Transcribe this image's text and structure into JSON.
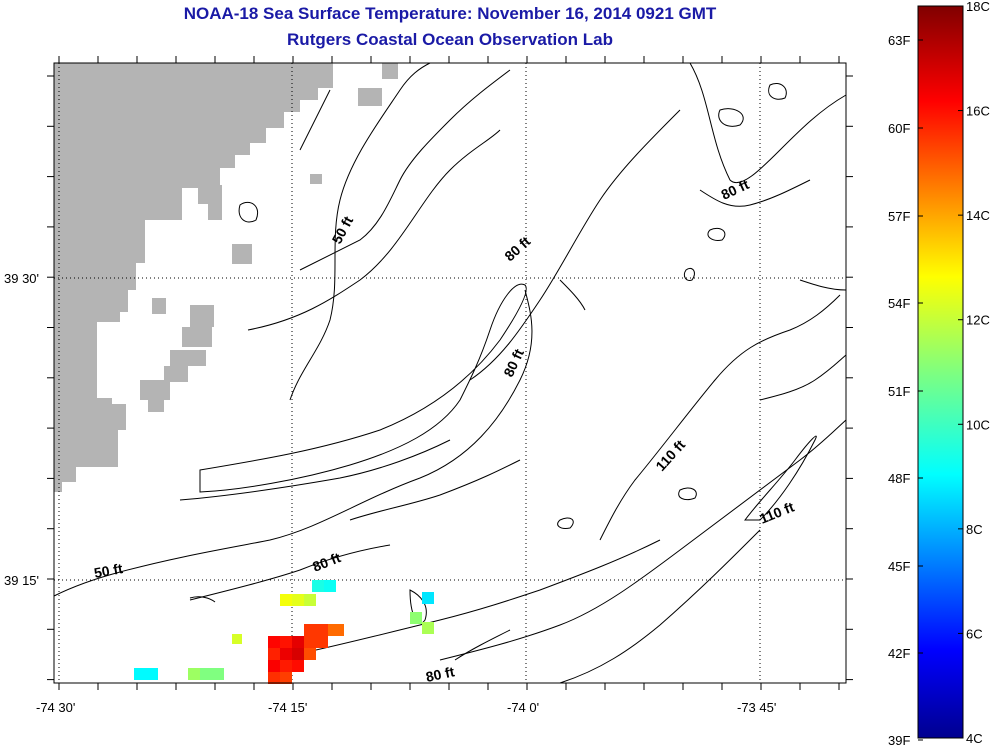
{
  "title": "NOAA-18 Sea Surface Temperature:  November 16, 2014 0921 GMT",
  "subtitle": "Rutgers Coastal Ocean Observation Lab",
  "map": {
    "lat_labels": [
      "39 30'",
      "39 15'"
    ],
    "lon_labels": [
      "-74 30'",
      "-74 15'",
      "-74 0'",
      "-73 45'"
    ],
    "contour_labels": [
      "50 ft",
      "50 ft",
      "80 ft",
      "80 ft",
      "80 ft",
      "80 ft",
      "80 ft",
      "110 ft",
      "110 ft"
    ],
    "land_color": "#b4b4b4",
    "contour_color": "#000000",
    "title_color": "#1a1aa6"
  },
  "colorbar": {
    "min_c": 4,
    "max_c": 18,
    "celsius_labels": [
      "18C",
      "16C",
      "14C",
      "12C",
      "10C",
      "8C",
      "6C",
      "4C"
    ],
    "fahrenheit_labels": [
      "63F",
      "60F",
      "57F",
      "54F",
      "51F",
      "48F",
      "45F",
      "42F",
      "39F"
    ],
    "colormap": "jet"
  },
  "sst_pixels_c": [
    {
      "c": 16.2
    },
    {
      "c": 16.0
    },
    {
      "c": 15.8
    },
    {
      "c": 16.5
    },
    {
      "c": 16.3
    },
    {
      "c": 15.9
    },
    {
      "c": 16.1
    },
    {
      "c": 15.6
    },
    {
      "c": 15.4
    },
    {
      "c": 16.6
    },
    {
      "c": 16.8
    },
    {
      "c": 15.2
    },
    {
      "c": 14.9
    },
    {
      "c": 12.6
    },
    {
      "c": 12.4
    },
    {
      "c": 12.0
    },
    {
      "c": 9.6
    },
    {
      "c": 9.4
    },
    {
      "c": 11.2
    },
    {
      "c": 11.6
    },
    {
      "c": 8.9
    },
    {
      "c": 11.4
    },
    {
      "c": 11.0
    },
    {
      "c": 9.2
    }
  ]
}
